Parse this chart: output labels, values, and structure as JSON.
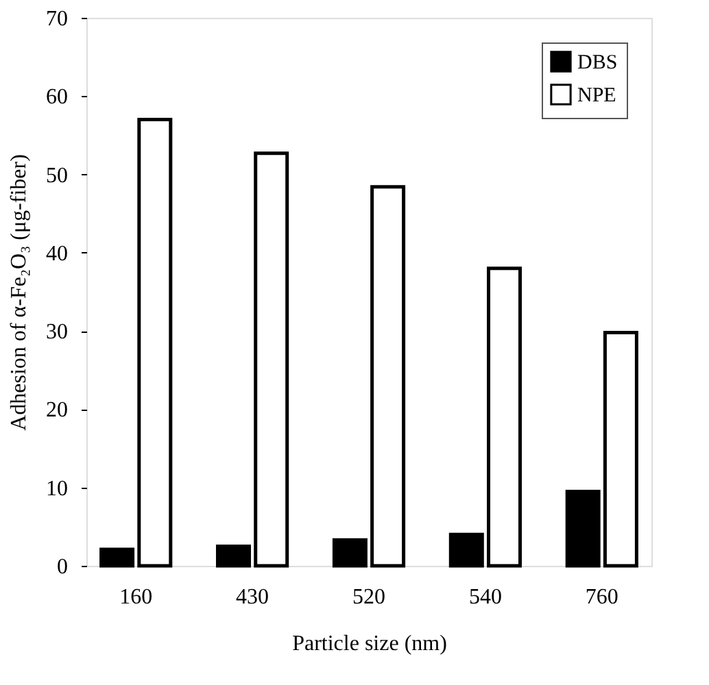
{
  "chart_data": {
    "type": "bar",
    "xlabel": "Particle size (nm)",
    "ylabel": "Adhesion of α-Fe₂O₃ (μg-fiber)",
    "categories": [
      "160",
      "430",
      "520",
      "540",
      "760"
    ],
    "series": [
      {
        "name": "DBS",
        "color": "#000000",
        "values": [
          2.1,
          2.5,
          3.3,
          4.0,
          9.5
        ]
      },
      {
        "name": "NPE",
        "color": "#ffffff",
        "values": [
          57.0,
          52.7,
          48.4,
          38.0,
          29.8
        ]
      }
    ],
    "ylim": [
      0,
      70
    ],
    "yticks": [
      0,
      10,
      20,
      30,
      40,
      50,
      60,
      70
    ],
    "grid": false,
    "legend": "top right"
  }
}
